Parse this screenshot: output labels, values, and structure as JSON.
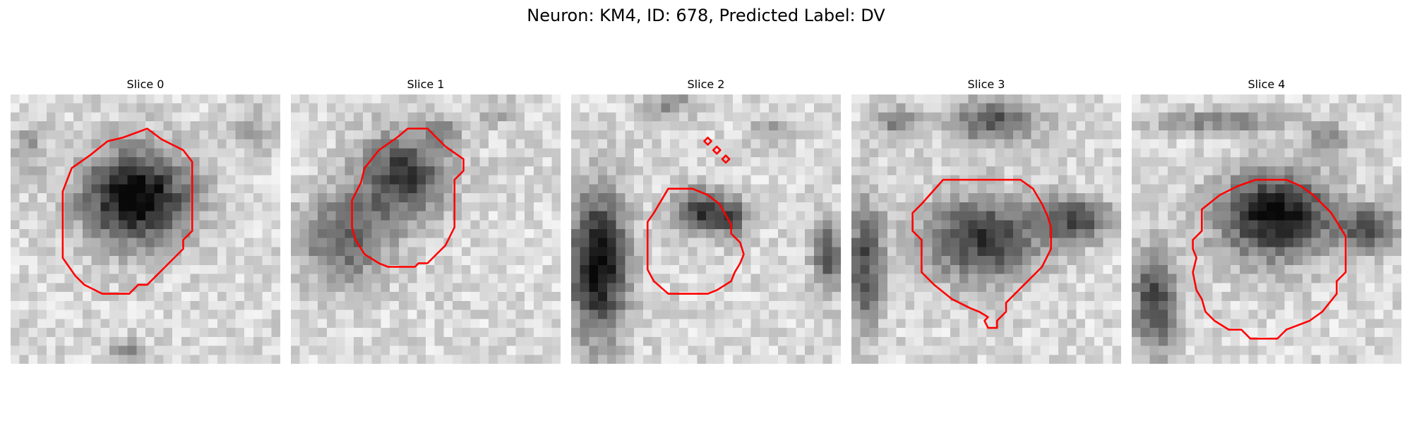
{
  "figure": {
    "title": "Neuron: KM4, ID: 678, Predicted Label: DV"
  },
  "colors": {
    "contour": "#ff0000",
    "background": "#ffffff"
  },
  "panels": [
    {
      "title": "Slice 0"
    },
    {
      "title": "Slice 1"
    },
    {
      "title": "Slice 2"
    },
    {
      "title": "Slice 3"
    },
    {
      "title": "Slice 4"
    }
  ]
}
